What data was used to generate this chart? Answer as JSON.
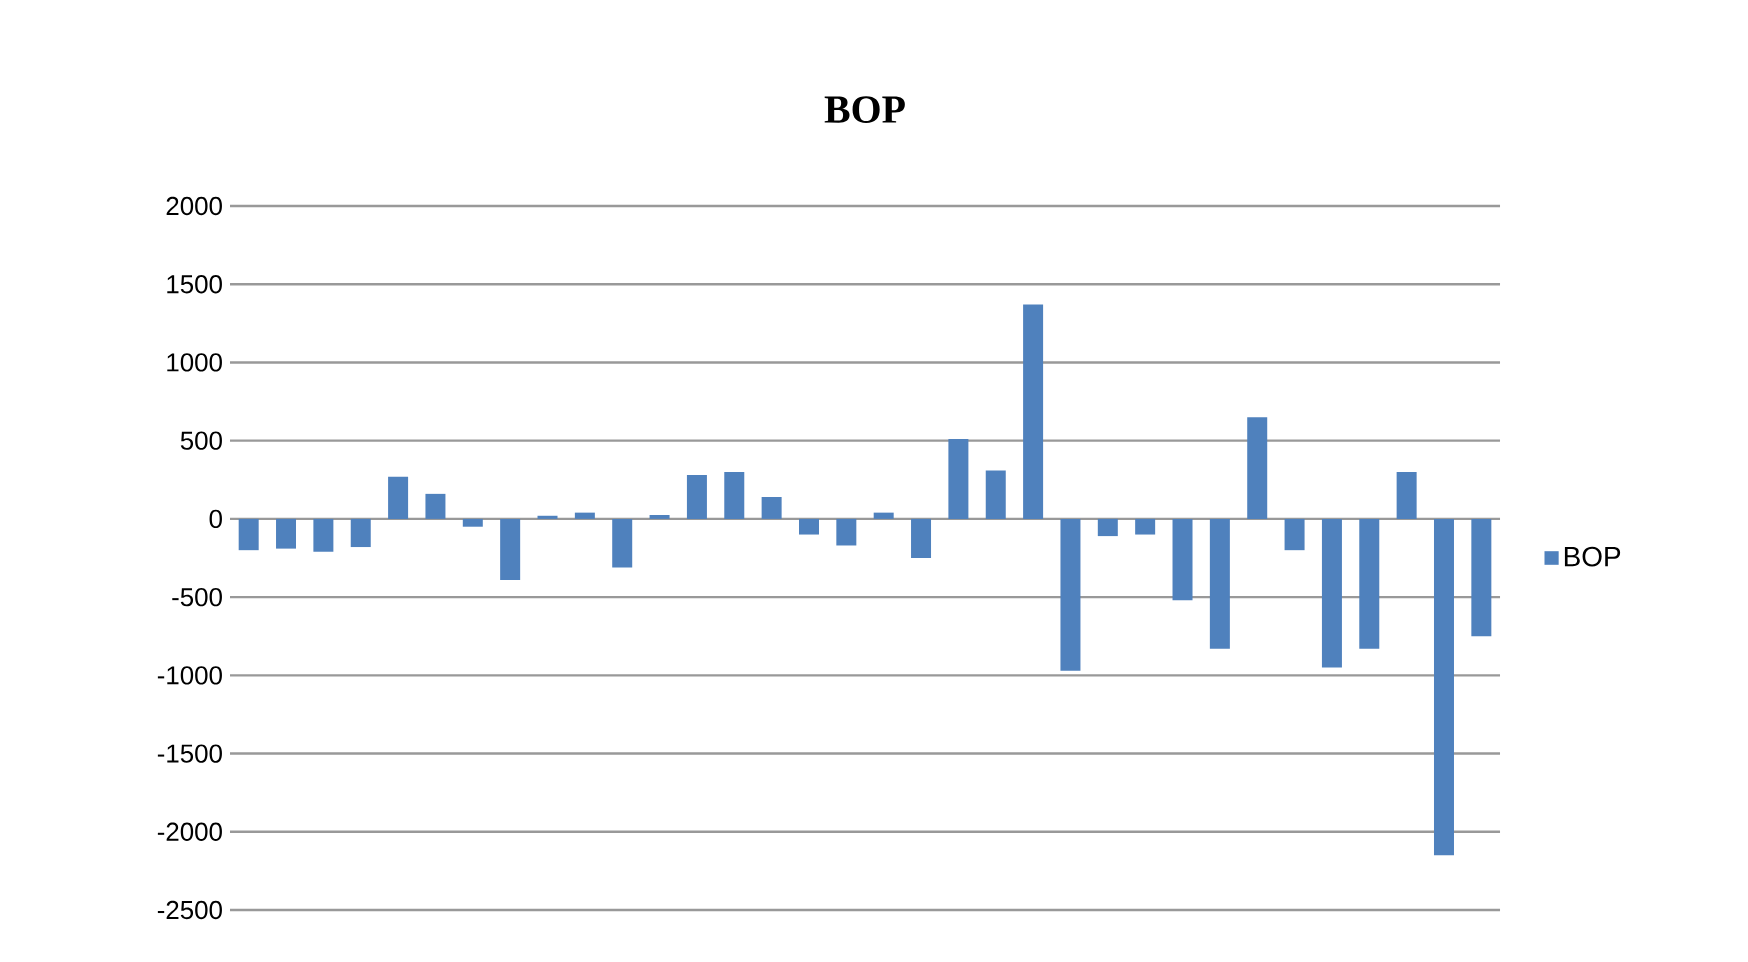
{
  "chart_data": {
    "type": "bar",
    "title": "BOP",
    "categories": [
      null,
      null,
      null,
      null,
      null,
      null,
      null,
      null,
      null,
      null,
      null,
      null,
      null,
      null,
      null,
      null,
      null,
      null,
      null,
      null,
      null,
      null,
      null,
      null,
      null,
      null,
      null,
      null,
      null,
      null,
      null,
      null,
      null,
      null
    ],
    "series": [
      {
        "name": "BOP",
        "color": "#4f81bd",
        "values": [
          -200,
          -190,
          -210,
          -180,
          270,
          160,
          -50,
          -390,
          20,
          40,
          -310,
          25,
          280,
          300,
          140,
          -100,
          -170,
          40,
          -250,
          510,
          310,
          1370,
          -970,
          -110,
          -100,
          -520,
          -830,
          650,
          -200,
          -950,
          -830,
          300,
          -2150,
          -750
        ]
      }
    ],
    "ylim": [
      -2500,
      2000
    ],
    "yticks": [
      -2500,
      -2000,
      -1500,
      -1000,
      -500,
      0,
      500,
      1000,
      1500,
      2000
    ],
    "grid": "y",
    "legend": "right",
    "tick_labels": "y"
  }
}
